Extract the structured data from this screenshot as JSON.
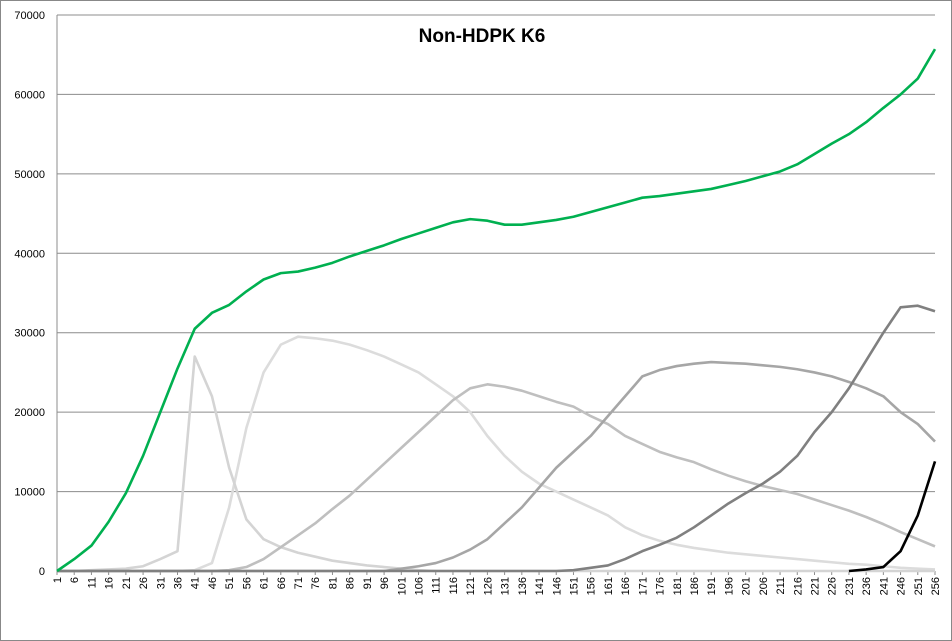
{
  "chart_data": {
    "type": "line",
    "title": "Non-HDPK K6",
    "x": [
      1,
      6,
      11,
      16,
      21,
      26,
      31,
      36,
      41,
      46,
      51,
      56,
      61,
      66,
      71,
      76,
      81,
      86,
      91,
      96,
      101,
      106,
      111,
      116,
      121,
      126,
      131,
      136,
      141,
      146,
      151,
      156,
      161,
      166,
      171,
      176,
      181,
      186,
      191,
      196,
      201,
      206,
      211,
      216,
      221,
      226,
      231,
      236,
      241,
      246,
      251,
      256
    ],
    "xlim": [
      1,
      256
    ],
    "ylim": [
      0,
      70000
    ],
    "yticks": [
      0,
      10000,
      20000,
      30000,
      40000,
      50000,
      60000,
      70000
    ],
    "grid": true,
    "series": [
      {
        "color": "#dcdcdc",
        "values": [
          0,
          0,
          0,
          0,
          0,
          0,
          0,
          0,
          100,
          1000,
          8000,
          18000,
          25000,
          28500,
          29500,
          29300,
          29000,
          28500,
          27800,
          27000,
          26000,
          25000,
          23500,
          22000,
          20000,
          17000,
          14500,
          12500,
          11000,
          10000,
          9000,
          8000,
          7000,
          5500,
          4500,
          3800,
          3300,
          2900,
          2600,
          2300,
          2100,
          1900,
          1700,
          1500,
          1300,
          1100,
          900,
          800,
          600,
          400,
          300,
          200
        ]
      },
      {
        "color": "#d4d4d4",
        "values": [
          0,
          0,
          100,
          200,
          300,
          600,
          1500,
          2500,
          27000,
          22000,
          13000,
          6500,
          4000,
          3000,
          2300,
          1800,
          1300,
          1000,
          700,
          500,
          300,
          100,
          0,
          0,
          0,
          0,
          0,
          0,
          0,
          0,
          0,
          0,
          0,
          0,
          0,
          0,
          0,
          0,
          0,
          0,
          0,
          0,
          0,
          0,
          0,
          0,
          0,
          0,
          0,
          0,
          0,
          0
        ]
      },
      {
        "color": "#bfbfbf",
        "values": [
          0,
          0,
          0,
          0,
          0,
          0,
          0,
          0,
          0,
          0,
          100,
          500,
          1500,
          3000,
          4500,
          6000,
          7800,
          9500,
          11500,
          13500,
          15500,
          17500,
          19500,
          21500,
          23000,
          23500,
          23200,
          22700,
          22000,
          21300,
          20700,
          19500,
          18500,
          17000,
          16000,
          15000,
          14300,
          13700,
          12800,
          12000,
          11300,
          10700,
          10200,
          9700,
          9000,
          8300,
          7600,
          6800,
          5900,
          4900,
          4000,
          3100
        ]
      },
      {
        "color": "#a6a6a6",
        "values": [
          0,
          0,
          0,
          0,
          0,
          0,
          0,
          0,
          0,
          0,
          0,
          0,
          0,
          0,
          0,
          0,
          0,
          0,
          0,
          0,
          300,
          600,
          1000,
          1700,
          2700,
          4000,
          6000,
          8000,
          10500,
          13000,
          15000,
          17000,
          19500,
          22000,
          24500,
          25300,
          25800,
          26100,
          26300,
          26200,
          26100,
          25900,
          25700,
          25400,
          25000,
          24500,
          23800,
          23000,
          22000,
          20000,
          18500,
          16300
        ]
      },
      {
        "color": "#808080",
        "values": [
          0,
          0,
          0,
          0,
          0,
          0,
          0,
          0,
          0,
          0,
          0,
          0,
          0,
          0,
          0,
          0,
          0,
          0,
          0,
          0,
          0,
          0,
          0,
          0,
          0,
          0,
          0,
          0,
          0,
          0,
          100,
          400,
          700,
          1500,
          2500,
          3300,
          4200,
          5500,
          7000,
          8500,
          9800,
          11000,
          12500,
          14500,
          17500,
          20000,
          23000,
          26500,
          30000,
          33200,
          33400,
          32700
        ]
      },
      {
        "color": "#000000",
        "values": [
          null,
          null,
          null,
          null,
          null,
          null,
          null,
          null,
          null,
          null,
          null,
          null,
          null,
          null,
          null,
          null,
          null,
          null,
          null,
          null,
          null,
          null,
          null,
          null,
          null,
          null,
          null,
          null,
          null,
          null,
          null,
          null,
          null,
          null,
          null,
          null,
          null,
          null,
          null,
          null,
          null,
          null,
          null,
          null,
          null,
          null,
          0,
          200,
          500,
          2500,
          7000,
          13800
        ]
      },
      {
        "color": "#00b050",
        "values": [
          0,
          1500,
          3200,
          6200,
          9800,
          14500,
          20000,
          25500,
          30500,
          32500,
          33500,
          35200,
          36700,
          37500,
          37700,
          38200,
          38800,
          39600,
          40300,
          41000,
          41800,
          42500,
          43200,
          43900,
          44300,
          44100,
          43600,
          43600,
          43900,
          44200,
          44600,
          45200,
          45800,
          46400,
          47000,
          47200,
          47500,
          47800,
          48100,
          48600,
          49100,
          49700,
          50300,
          51200,
          52500,
          53800,
          55000,
          56500,
          58300,
          60000,
          62000,
          65700
        ]
      }
    ]
  }
}
